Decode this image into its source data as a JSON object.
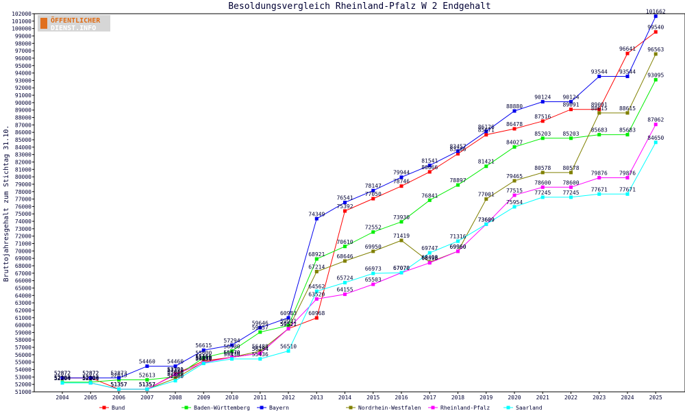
{
  "logo": {
    "line1": "ÖFFENTLICHER",
    "line2": "DIENST.INFO"
  },
  "chart_data": {
    "type": "line",
    "title": "Besoldungsvergleich Rheinland-Pfalz W 2 Endgehalt",
    "xlabel": "",
    "ylabel": "Bruttojahresgehalt zum Stichtag 31.10.",
    "ylim": [
      51000,
      102000
    ],
    "ytick_step": 1000,
    "grid": false,
    "legend_position": "bottom",
    "x": [
      "2004",
      "2005",
      "2006",
      "2007",
      "2008",
      "2009",
      "2010",
      "2011",
      "2012",
      "2013",
      "2014",
      "2015",
      "2016",
      "2017",
      "2018",
      "2019",
      "2020",
      "2021",
      "2022",
      "2023",
      "2024",
      "2025"
    ],
    "series": [
      {
        "name": "Bund",
        "color": "#ff0000",
        "values": [
          52872,
          52872,
          51357,
          51357,
          53391,
          55166,
          55670,
          56194,
          59521,
          60968,
          75392,
          77050,
          78746,
          80666,
          83106,
          85671,
          86478,
          87516,
          89091,
          89091,
          96641,
          99540
        ]
      },
      {
        "name": "Baden-Württemberg",
        "color": "#00ee00",
        "values": [
          52300,
          52300,
          52613,
          52613,
          53020,
          55600,
          56500,
          59057,
          59931,
          68921,
          70610,
          72552,
          73930,
          76841,
          78897,
          81421,
          84027,
          85203,
          85203,
          85683,
          85683,
          93095
        ]
      },
      {
        "name": "Bayern",
        "color": "#0000ee",
        "values": [
          52872,
          52872,
          52873,
          54460,
          54460,
          56615,
          57294,
          59646,
          60983,
          74349,
          76541,
          78147,
          79944,
          81541,
          83457,
          86126,
          88880,
          90124,
          90124,
          93544,
          93544,
          101662
        ]
      },
      {
        "name": "Nordrhein-Westfalen",
        "color": "#808000",
        "values": [
          52204,
          52204,
          51357,
          51357,
          52808,
          55000,
          55670,
          56488,
          59521,
          67214,
          68646,
          69950,
          71419,
          68498,
          69960,
          77001,
          79465,
          80578,
          80578,
          88615,
          88615,
          96563
        ]
      },
      {
        "name": "Rheinland-Pfalz",
        "color": "#ff00ff",
        "values": [
          52204,
          52204,
          51357,
          51357,
          53320,
          54930,
          55670,
          56194,
          59521,
          63520,
          64155,
          65503,
          67070,
          68398,
          69960,
          73609,
          77515,
          78600,
          78600,
          79876,
          79876,
          87062
        ]
      },
      {
        "name": "Saarland",
        "color": "#00ffff",
        "values": [
          52204,
          52204,
          51357,
          51357,
          52500,
          54830,
          55436,
          55436,
          56510,
          64562,
          65724,
          66973,
          67070,
          69747,
          71316,
          73609,
          75954,
          77245,
          77245,
          77671,
          77671,
          84650
        ]
      }
    ]
  }
}
